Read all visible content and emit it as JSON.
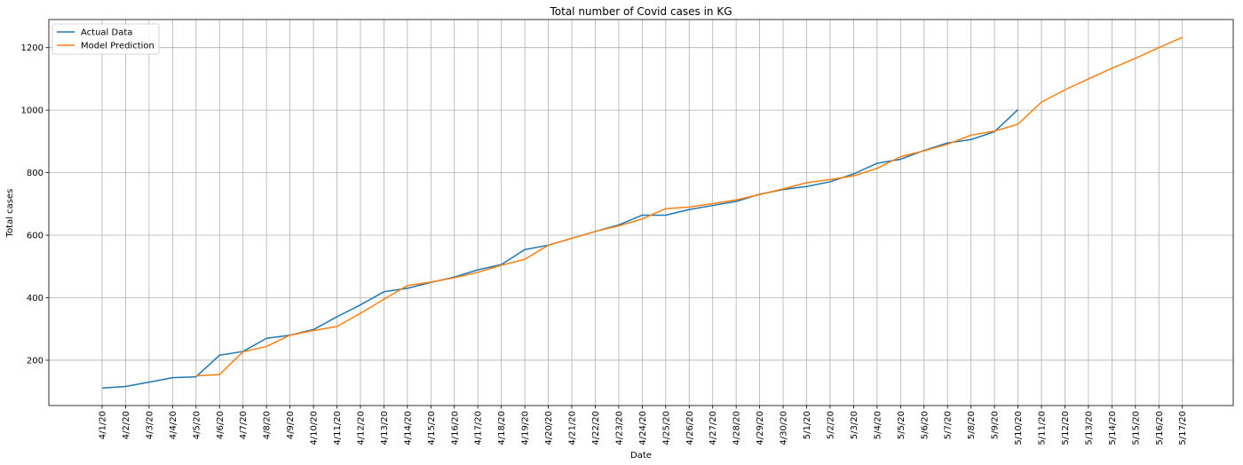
{
  "chart_data": {
    "type": "line",
    "title": "Total number of Covid cases in KG",
    "xlabel": "Date",
    "ylabel": "Total cases",
    "ylim": [
      55,
      1290
    ],
    "yticks": [
      200,
      400,
      600,
      800,
      1000,
      1200
    ],
    "grid": true,
    "legend_position": "top-left",
    "categories": [
      "4/1/20",
      "4/2/20",
      "4/3/20",
      "4/4/20",
      "4/5/20",
      "4/6/20",
      "4/7/20",
      "4/8/20",
      "4/9/20",
      "4/10/20",
      "4/11/20",
      "4/12/20",
      "4/13/20",
      "4/14/20",
      "4/15/20",
      "4/16/20",
      "4/17/20",
      "4/18/20",
      "4/19/20",
      "4/20/20",
      "4/21/20",
      "4/22/20",
      "4/23/20",
      "4/24/20",
      "4/25/20",
      "4/26/20",
      "4/27/20",
      "4/28/20",
      "4/29/20",
      "4/30/20",
      "5/1/20",
      "5/2/20",
      "5/3/20",
      "5/4/20",
      "5/5/20",
      "5/6/20",
      "5/7/20",
      "5/8/20",
      "5/9/20",
      "5/10/20",
      "5/11/20",
      "5/12/20",
      "5/13/20",
      "5/14/20",
      "5/15/20",
      "5/16/20",
      "5/17/20"
    ],
    "series": [
      {
        "name": "Actual Data",
        "color": "#1f77b4",
        "values": [
          111,
          116,
          130,
          144,
          147,
          216,
          228,
          270,
          280,
          298,
          339,
          377,
          419,
          430,
          449,
          466,
          489,
          506,
          554,
          568,
          590,
          612,
          633,
          664,
          664,
          682,
          695,
          708,
          731,
          746,
          756,
          771,
          796,
          830,
          843,
          871,
          895,
          906,
          931,
          1002,
          null,
          null,
          null,
          null,
          null,
          null,
          null
        ]
      },
      {
        "name": "Model Prediction",
        "color": "#ff7f0e",
        "values": [
          null,
          null,
          null,
          null,
          150,
          154,
          227,
          244,
          280,
          295,
          308,
          350,
          395,
          439,
          450,
          464,
          481,
          504,
          523,
          568,
          590,
          612,
          630,
          652,
          685,
          690,
          701,
          713,
          730,
          748,
          768,
          778,
          790,
          814,
          851,
          870,
          891,
          920,
          933,
          955,
          1026,
          1065,
          1100,
          1134,
          1166,
          1200,
          1233
        ]
      }
    ]
  }
}
